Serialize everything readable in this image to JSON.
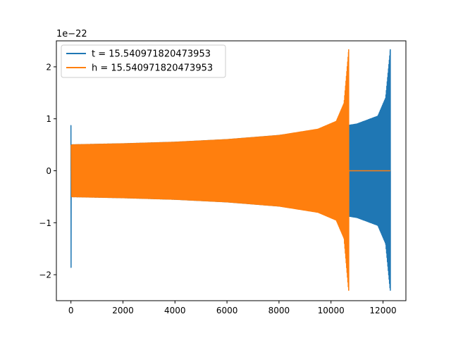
{
  "chart_data": {
    "type": "line",
    "title": "",
    "xlabel": "",
    "ylabel": "",
    "y_offset_label": "1e−22",
    "xlim": [
      -560,
      12880
    ],
    "ylim": [
      -2.5,
      2.5
    ],
    "xticks": [
      0,
      2000,
      4000,
      6000,
      8000,
      10000,
      12000
    ],
    "xtick_labels": [
      "0",
      "2000",
      "4000",
      "6000",
      "8000",
      "10000",
      "12000"
    ],
    "yticks": [
      -2,
      -1,
      0,
      1,
      2
    ],
    "ytick_labels": [
      "−2",
      "−1",
      "0",
      "1",
      "2"
    ],
    "grid": false,
    "legend_position": "upper-left",
    "series": [
      {
        "name": "t = 15.540971820473953",
        "color": "#1f77b4",
        "description_envelope": {
          "x_start": 0,
          "x_end": 12280,
          "spike_at_start": {
            "x": 0,
            "max": 0.87,
            "min": -1.86
          },
          "amplitude_envelope": [
            [
              0,
              0.5
            ],
            [
              2000,
              0.52
            ],
            [
              4000,
              0.55
            ],
            [
              6000,
              0.6
            ],
            [
              8000,
              0.68
            ],
            [
              10000,
              0.82
            ],
            [
              11000,
              0.9
            ],
            [
              11800,
              1.05
            ],
            [
              12100,
              1.4
            ],
            [
              12280,
              2.33
            ]
          ],
          "min_at_end": -2.3
        }
      },
      {
        "name": "h = 15.540971820473953",
        "color": "#ff7f0e",
        "description_envelope": {
          "x_start": 0,
          "x_end": 10680,
          "amplitude_envelope": [
            [
              0,
              0.5
            ],
            [
              2000,
              0.52
            ],
            [
              4000,
              0.55
            ],
            [
              6000,
              0.6
            ],
            [
              8000,
              0.68
            ],
            [
              9500,
              0.8
            ],
            [
              10200,
              0.95
            ],
            [
              10500,
              1.3
            ],
            [
              10680,
              2.33
            ]
          ],
          "min_at_end": -2.3,
          "flat_zero_after": [
            10680,
            12280
          ]
        }
      }
    ]
  }
}
